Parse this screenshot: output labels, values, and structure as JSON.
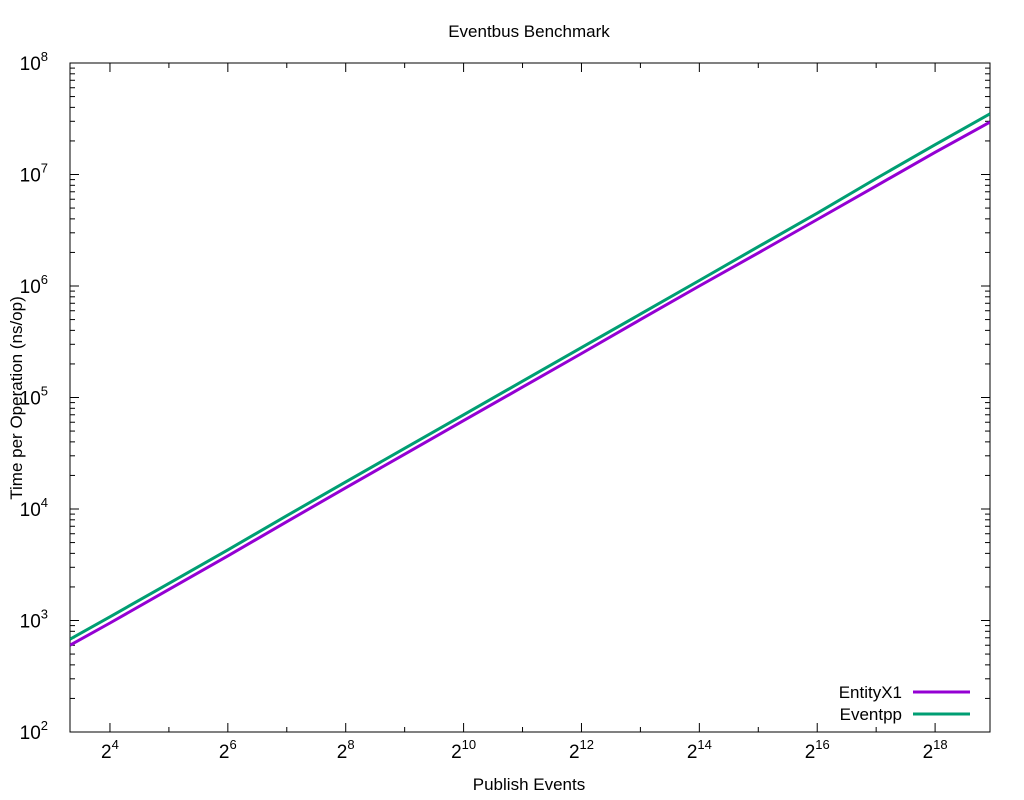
{
  "chart_data": {
    "type": "line",
    "title": "Eventbus Benchmark",
    "xlabel": "Publish Events",
    "ylabel": "Time per Operation (ns/op)",
    "x_scale": "log2",
    "y_scale": "log10",
    "xlim": [
      10,
      500000
    ],
    "ylim": [
      100,
      100000000
    ],
    "x_ticks": [
      {
        "base": "2",
        "exp": "4",
        "value": 16
      },
      {
        "base": "2",
        "exp": "6",
        "value": 64
      },
      {
        "base": "2",
        "exp": "8",
        "value": 256
      },
      {
        "base": "2",
        "exp": "10",
        "value": 1024
      },
      {
        "base": "2",
        "exp": "12",
        "value": 4096
      },
      {
        "base": "2",
        "exp": "14",
        "value": 16384
      },
      {
        "base": "2",
        "exp": "16",
        "value": 65536
      },
      {
        "base": "2",
        "exp": "18",
        "value": 262144
      }
    ],
    "y_ticks": [
      {
        "base": "10",
        "exp": "2",
        "value": 100
      },
      {
        "base": "10",
        "exp": "3",
        "value": 1000
      },
      {
        "base": "10",
        "exp": "4",
        "value": 10000
      },
      {
        "base": "10",
        "exp": "5",
        "value": 100000
      },
      {
        "base": "10",
        "exp": "6",
        "value": 1000000
      },
      {
        "base": "10",
        "exp": "7",
        "value": 10000000
      },
      {
        "base": "10",
        "exp": "8",
        "value": 100000000
      }
    ],
    "legend_position": "bottom-right",
    "series": [
      {
        "name": "EntityX1",
        "color": "#9400d3",
        "x": [
          10,
          16,
          32,
          64,
          128,
          256,
          512,
          1024,
          2048,
          4096,
          8192,
          16384,
          32768,
          65536,
          131072,
          262144,
          500000
        ],
        "y": [
          600,
          950,
          1900,
          3800,
          7700,
          15500,
          31000,
          62000,
          124000,
          248000,
          500000,
          1000000,
          1980000,
          3950000,
          7900000,
          15800000,
          29500000
        ]
      },
      {
        "name": "Eventpp",
        "color": "#009e73",
        "x": [
          10,
          16,
          32,
          64,
          128,
          256,
          512,
          1024,
          2048,
          4096,
          8192,
          16384,
          32768,
          65536,
          131072,
          262144,
          500000
        ],
        "y": [
          680,
          1080,
          2150,
          4300,
          8700,
          17500,
          35000,
          70000,
          140000,
          280000,
          560000,
          1120000,
          2250000,
          4500000,
          9200000,
          18500000,
          35000000
        ]
      }
    ]
  }
}
